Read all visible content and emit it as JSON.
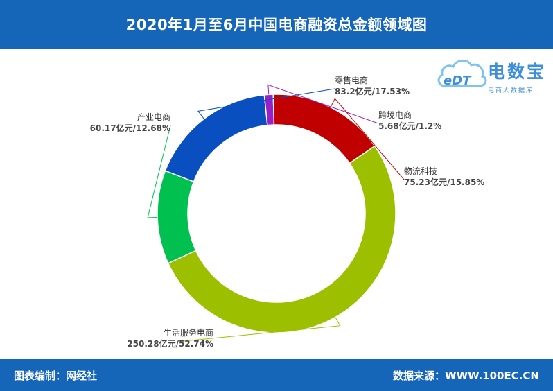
{
  "header": {
    "title": "2020年1月至6月中国电商融资总金额领域图"
  },
  "footer": {
    "left": "图表编制：网经社",
    "right": "数据来源：WWW.100EC.CN"
  },
  "logo": {
    "mark": "eDT",
    "title": "电数宝",
    "subtitle": "电商大数据库",
    "color": "#3d8fd8"
  },
  "chart_data": {
    "type": "donut",
    "title": "2020年1月至6月中国电商融资总金额领域图",
    "slices": [
      {
        "name": "零售电商",
        "label": "83.2亿元/17.53%",
        "value": 83.2,
        "percent": 17.53,
        "color": "#0a4fc0"
      },
      {
        "name": "跨境电商",
        "label": "5.68亿元/1.2%",
        "value": 5.68,
        "percent": 1.2,
        "color": "#9b1fc8"
      },
      {
        "name": "物流科技",
        "label": "75.23亿元/15.85%",
        "value": 75.23,
        "percent": 15.85,
        "color": "#c00000"
      },
      {
        "name": "生活服务电商",
        "label": "250.28亿元/52.74%",
        "value": 250.28,
        "percent": 52.74,
        "color": "#9cc000"
      },
      {
        "name": "产业电商",
        "label": "60.17亿元/12.68%",
        "value": 60.17,
        "percent": 12.68,
        "color": "#00c050"
      }
    ]
  }
}
